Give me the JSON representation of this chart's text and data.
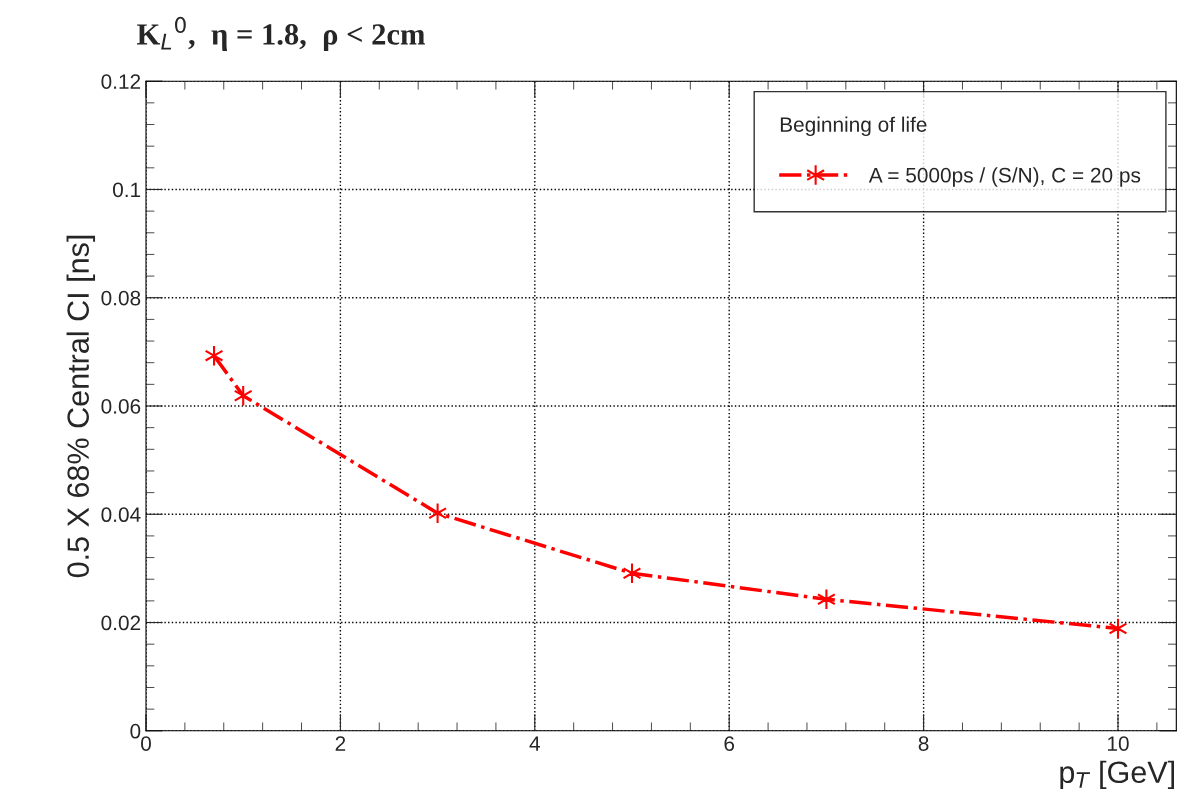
{
  "chart_data": {
    "type": "line",
    "title": "K$_{L}$$^{0}$,  η = 1.8,  ρ < 2cm",
    "xlabel": "p$_{T}$ [GeV]",
    "ylabel": "0.5 X 68% Central CI [ns]",
    "legend_title": "Beginning of life",
    "x": [
      0.7,
      1,
      3,
      5,
      7,
      10
    ],
    "series": [
      {
        "name": "A = 5000ps / (S/N), C = 20 ps",
        "color": "#ff0000",
        "values": [
          0.0693,
          0.0619,
          0.0402,
          0.0291,
          0.0243,
          0.0189
        ]
      }
    ],
    "xlim": [
      0,
      10.6
    ],
    "xticks": [
      0,
      2,
      4,
      6,
      8,
      10
    ],
    "ylim": [
      0,
      0.12
    ],
    "yticks": [
      0,
      0.02,
      0.04,
      0.06,
      0.08,
      0.1,
      0.12
    ],
    "grid": true,
    "legend": "top right",
    "marker": "cross",
    "line_style": "dashed"
  }
}
